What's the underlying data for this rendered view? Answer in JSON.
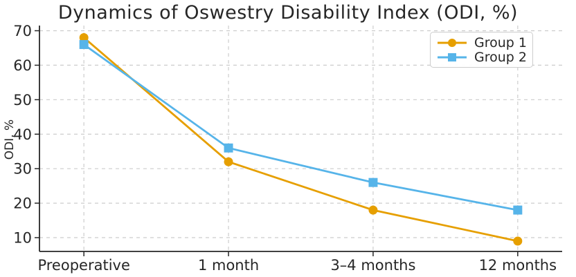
{
  "figure": {
    "background": "#ffffff",
    "text_color": "#262626",
    "grid_color": "#cccccc",
    "spine_color": "#262626"
  },
  "chart_data": {
    "type": "line",
    "title": "Dynamics of Oswestry Disability Index (ODI, %)",
    "xlabel": "",
    "ylabel": "ODI, %",
    "categories": [
      "Preoperative",
      "1 month",
      "3–4 months",
      "12 months"
    ],
    "series": [
      {
        "name": "Group 1",
        "values": [
          68,
          32,
          18,
          9
        ],
        "color": "#E69F00",
        "marker": "circle"
      },
      {
        "name": "Group 2",
        "values": [
          66,
          36,
          26,
          18
        ],
        "color": "#56B4E9",
        "marker": "square"
      }
    ],
    "yticks": [
      10,
      20,
      30,
      40,
      50,
      60,
      70
    ],
    "ylim": [
      6,
      71.5
    ],
    "grid": true,
    "grid_style": "dashed",
    "legend_position": "top-right"
  }
}
